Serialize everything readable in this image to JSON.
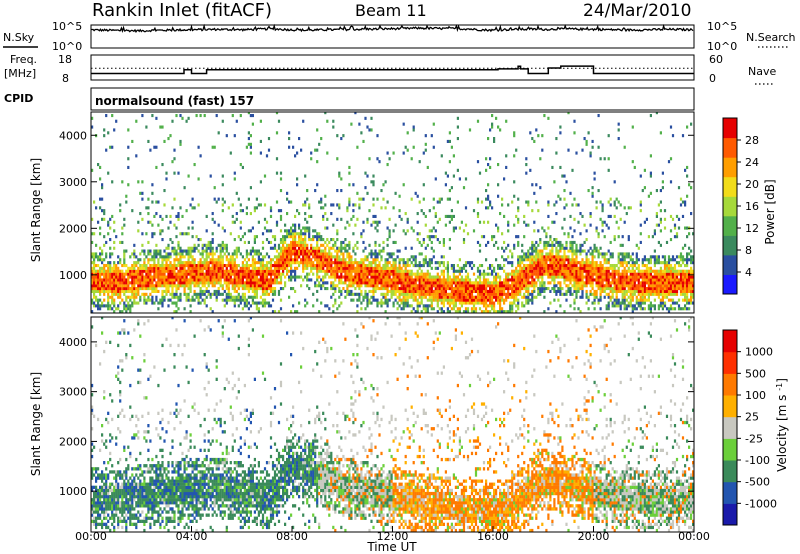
{
  "chart_data": [
    {
      "type": "line",
      "name": "n-sky-n-search-panel",
      "header": {
        "station": "Rankin Inlet (fitACF)",
        "beam": "Beam 11",
        "date": "24/Mar/2010"
      },
      "ylabel_left": "N.Sky",
      "ylabel_right": "N.Search",
      "yticks_left": [
        "10^5",
        "10^0"
      ],
      "yticks_right": [
        "10^5",
        "10^0"
      ],
      "x_hours": [
        0,
        0.5,
        1,
        1.5,
        2,
        2.5,
        3,
        3.5,
        4,
        4.5,
        5,
        5.5,
        6,
        6.5,
        7,
        7.5,
        8,
        8.5,
        9,
        9.5,
        10,
        10.5,
        11,
        11.5,
        12,
        12.5,
        13,
        13.5,
        14,
        14.5,
        15,
        15.5,
        16,
        16.5,
        17,
        17.5,
        18,
        18.5,
        19,
        19.5,
        20,
        20.5,
        21,
        21.5,
        22,
        22.5,
        23,
        23.5,
        24
      ],
      "noise_sky_log10": [
        4.1,
        4.0,
        3.95,
        3.9,
        3.85,
        3.95,
        4.0,
        4.05,
        4.1,
        4.15,
        4.2,
        4.15,
        4.1,
        4.2,
        4.3,
        4.25,
        4.1,
        4.0,
        4.05,
        4.1,
        4.15,
        4.2,
        4.25,
        4.3,
        4.35,
        4.4,
        4.5,
        4.45,
        4.4,
        4.35,
        4.3,
        4.1,
        4.0,
        4.15,
        4.2,
        4.25,
        4.2,
        4.25,
        4.3,
        4.25,
        4.2,
        4.15,
        4.1,
        4.05,
        4.1,
        4.15,
        4.2,
        4.15,
        4.1
      ]
    },
    {
      "type": "line",
      "name": "freq-nave-panel",
      "ylabel_left": "Freq.",
      "yunit_left": "[MHz]",
      "ylabel_right": "Nave",
      "yticks_left": [
        "18",
        "8"
      ],
      "yticks_right": [
        "60",
        "0"
      ],
      "ylim": [
        8,
        18
      ],
      "ylim_right": [
        0,
        60
      ],
      "freq_steps": [
        {
          "start": 0,
          "end": 3.7,
          "mhz": 10.4
        },
        {
          "start": 3.7,
          "end": 4.0,
          "mhz": 12.0
        },
        {
          "start": 4.0,
          "end": 4.6,
          "mhz": 10.4
        },
        {
          "start": 4.6,
          "end": 16.2,
          "mhz": 12.0
        },
        {
          "start": 16.2,
          "end": 17.0,
          "mhz": 12.4
        },
        {
          "start": 17.0,
          "end": 17.1,
          "mhz": 13.5
        },
        {
          "start": 17.1,
          "end": 17.4,
          "mhz": 12.4
        },
        {
          "start": 17.4,
          "end": 18.2,
          "mhz": 10.4
        },
        {
          "start": 18.2,
          "end": 18.7,
          "mhz": 12.8
        },
        {
          "start": 18.7,
          "end": 20.0,
          "mhz": 13.6
        },
        {
          "start": 20.0,
          "end": 24.0,
          "mhz": 10.4
        }
      ],
      "nave_level": 28
    },
    {
      "type": "table",
      "name": "cpid-row",
      "label": "CPID",
      "value": "normalsound (fast) 157"
    },
    {
      "type": "heatmap",
      "name": "power-panel",
      "ylabel": "Slant Range [km]",
      "yticks": [
        1000,
        2000,
        3000,
        4000
      ],
      "ylim": [
        180,
        4500
      ],
      "colorbar_label": "Power [dB]",
      "colorbar_ticks": [
        "28",
        "24",
        "20",
        "16",
        "12",
        "8",
        "4"
      ],
      "colors": [
        "#1a1aff",
        "#2a4fa0",
        "#3b8a5e",
        "#52b04a",
        "#a6d93a",
        "#f2dc1a",
        "#ff9e00",
        "#ff5a00",
        "#e60000"
      ],
      "main_band_center_km": [
        [
          0,
          850
        ],
        [
          1,
          800
        ],
        [
          2,
          900
        ],
        [
          3,
          950
        ],
        [
          4,
          1000
        ],
        [
          5,
          1050
        ],
        [
          6,
          950
        ],
        [
          7,
          850
        ],
        [
          8,
          1500
        ],
        [
          9,
          1300
        ],
        [
          10,
          1050
        ],
        [
          11,
          950
        ],
        [
          12,
          850
        ],
        [
          13,
          750
        ],
        [
          14,
          650
        ],
        [
          15,
          600
        ],
        [
          16,
          550
        ],
        [
          17,
          800
        ],
        [
          18,
          1200
        ],
        [
          19,
          1100
        ],
        [
          20,
          950
        ],
        [
          21,
          850
        ],
        [
          22,
          800
        ],
        [
          23,
          800
        ],
        [
          24,
          800
        ]
      ]
    },
    {
      "type": "heatmap",
      "name": "velocity-panel",
      "ylabel": "Slant Range [km]",
      "xlabel": "Time UT",
      "xticks": [
        "00:00",
        "04:00",
        "08:00",
        "12:00",
        "16:00",
        "20:00",
        "00:00"
      ],
      "yticks": [
        1000,
        2000,
        3000,
        4000
      ],
      "ylim": [
        180,
        4500
      ],
      "colorbar_label": "Velocity [m s^-1]",
      "colorbar_ticks": [
        "1000",
        "500",
        "100",
        "25",
        "-25",
        "-100",
        "-500",
        "-1000"
      ],
      "colors": [
        "#1a1aaa",
        "#2255b0",
        "#3a8a5a",
        "#6bcf3a",
        "#c8c8c0",
        "#ffb000",
        "#ff7a00",
        "#ff3000",
        "#e60000"
      ],
      "dominant_sign_by_time": [
        [
          0,
          "toward"
        ],
        [
          7,
          "toward"
        ],
        [
          9,
          "mixed"
        ],
        [
          12,
          "away"
        ],
        [
          16,
          "away"
        ],
        [
          20,
          "mixed"
        ],
        [
          24,
          "away"
        ]
      ]
    }
  ]
}
